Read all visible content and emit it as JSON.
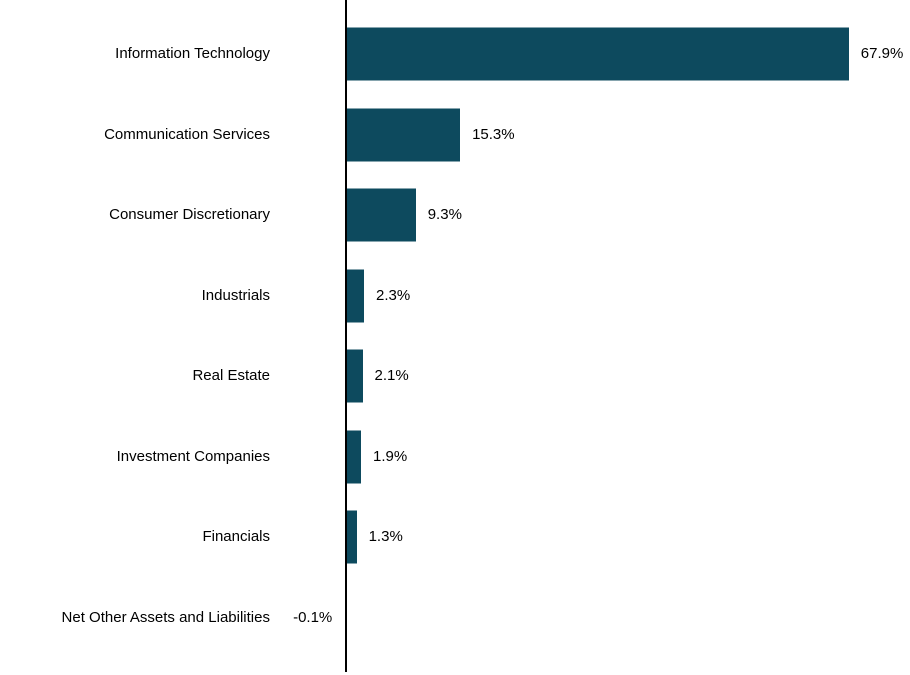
{
  "chart_data": {
    "type": "bar",
    "orientation": "horizontal",
    "title": "",
    "xlabel": "",
    "ylabel": "",
    "categories": [
      "Information Technology",
      "Communication Services",
      "Consumer Discretionary",
      "Industrials",
      "Real Estate",
      "Investment Companies",
      "Financials",
      "Net Other Assets and Liabilities"
    ],
    "values": [
      67.9,
      15.3,
      9.3,
      2.3,
      2.1,
      1.9,
      1.3,
      -0.1
    ],
    "value_labels": [
      "67.9%",
      "15.3%",
      "9.3%",
      "2.3%",
      "2.1%",
      "1.9%",
      "1.3%",
      "-0.1%"
    ],
    "unit": "%",
    "bar_color": "#0D4A5E",
    "axis_line_color": "#000000",
    "text_color": "#000000",
    "background_color": "#ffffff",
    "xlim": [
      -10,
      76
    ],
    "grid": false,
    "legend": false,
    "value_label_position": "outside-end"
  }
}
